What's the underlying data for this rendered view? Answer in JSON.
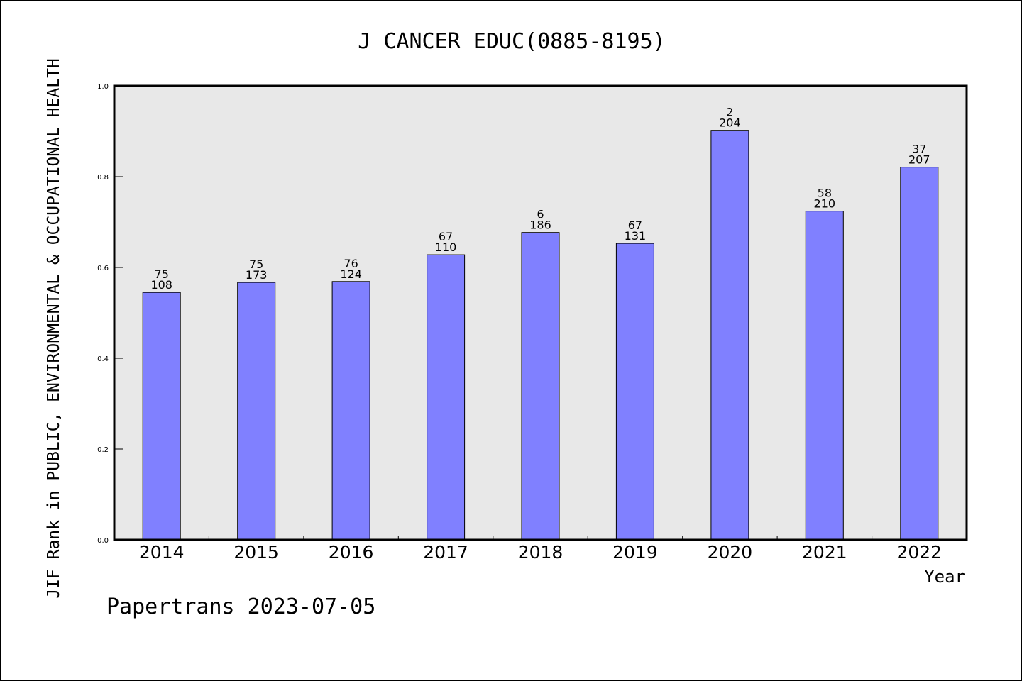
{
  "chart_data": {
    "type": "bar",
    "title": "J CANCER EDUC(0885-8195)",
    "xlabel": "Year",
    "ylabel": "JIF Rank in PUBLIC, ENVIRONMENTAL & OCCUPATIONAL HEALTH",
    "categories": [
      "2014",
      "2015",
      "2016",
      "2017",
      "2018",
      "2019",
      "2020",
      "2021",
      "2022"
    ],
    "values": [
      0.545,
      0.567,
      0.569,
      0.628,
      0.677,
      0.653,
      0.902,
      0.724,
      0.821
    ],
    "bar_labels": [
      {
        "top": "75",
        "bottom": "108"
      },
      {
        "top": "75",
        "bottom": "173"
      },
      {
        "top": "76",
        "bottom": "124"
      },
      {
        "top": "67",
        "bottom": "110"
      },
      {
        "top": "6",
        "bottom": "186"
      },
      {
        "top": "67",
        "bottom": "131"
      },
      {
        "top": "2",
        "bottom": "204"
      },
      {
        "top": "58",
        "bottom": "210"
      },
      {
        "top": "37",
        "bottom": "207"
      }
    ],
    "ylim": [
      0,
      1.0
    ],
    "yticks": [
      "0.0",
      "0.2",
      "0.4",
      "0.6",
      "0.8",
      "1.0"
    ],
    "grid": false,
    "legend": "none",
    "colors": {
      "bar": "#8080ff",
      "plot_background": "#e8e8e8",
      "axis": "#000000"
    }
  },
  "footer": "Papertrans 2023-07-05"
}
